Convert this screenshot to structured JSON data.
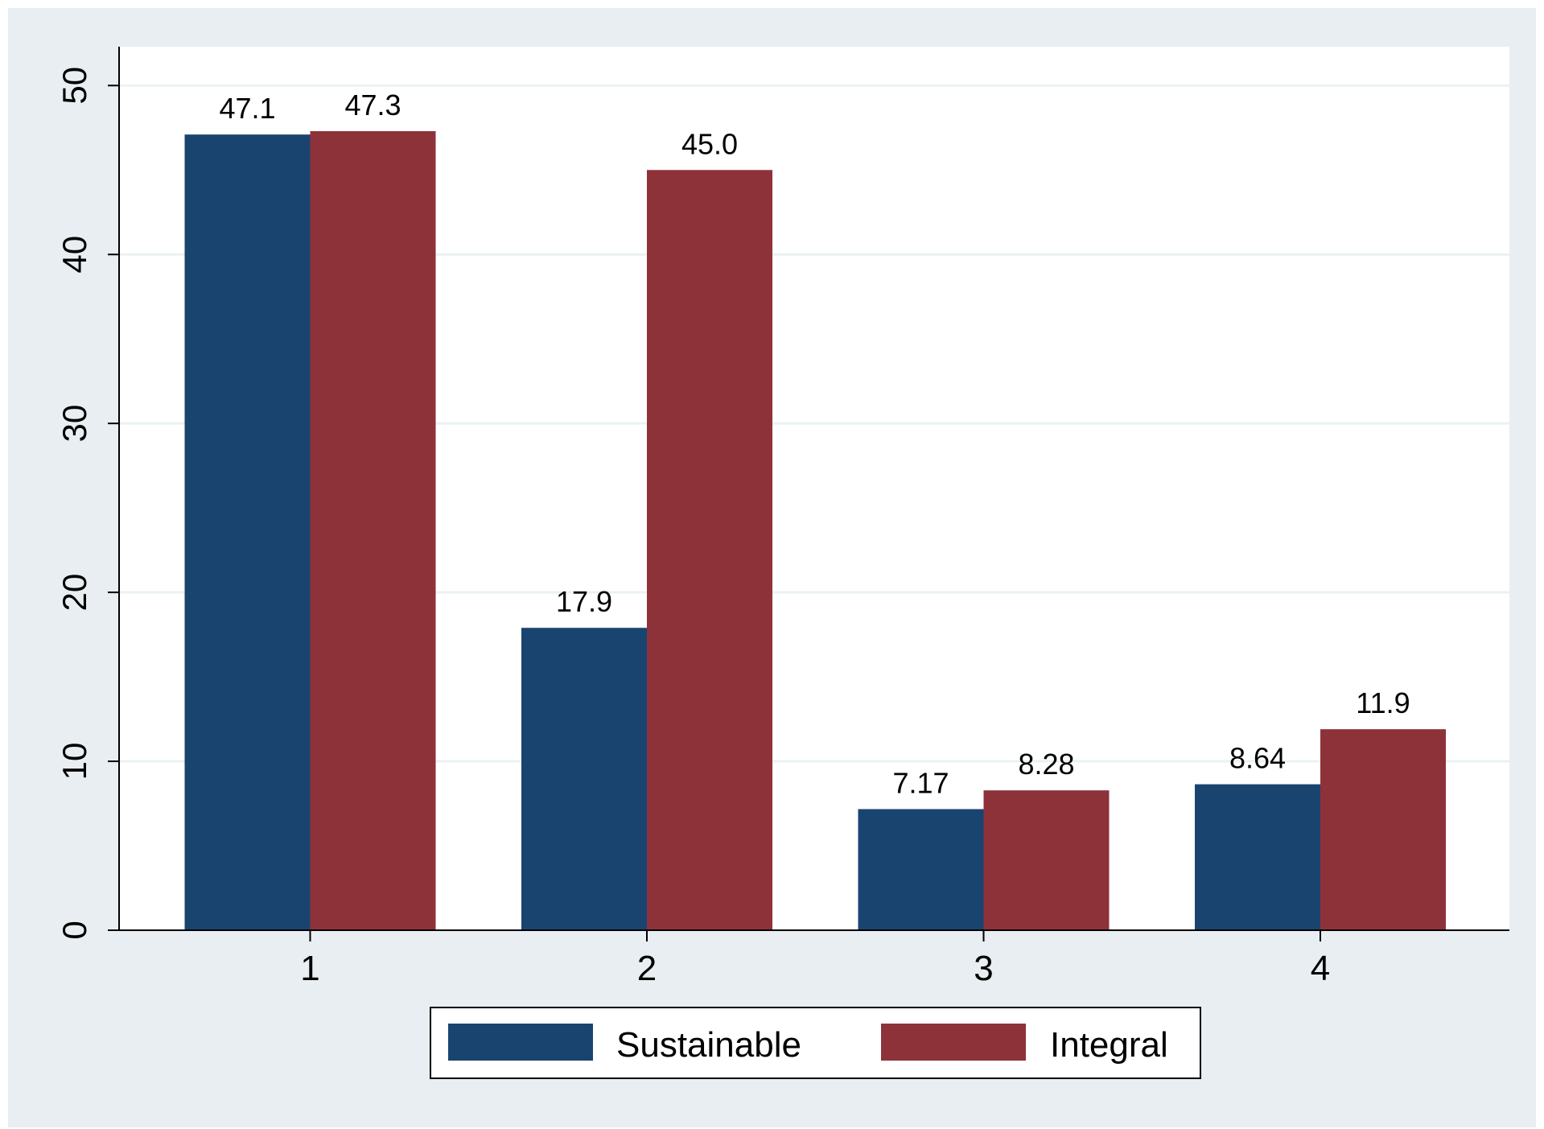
{
  "colors": {
    "outer_background": "#e8eef1",
    "plot_background": "#ffffff",
    "gridline": "#eaf2f3",
    "axis": "#000000",
    "text": "#000000"
  },
  "chart_data": {
    "type": "bar",
    "title": "",
    "xlabel": "",
    "ylabel": "",
    "categories": [
      "1",
      "2",
      "3",
      "4"
    ],
    "series": [
      {
        "name": "Sustainable",
        "color": "#1a4470",
        "values": [
          47.1,
          17.9,
          7.17,
          8.64
        ],
        "labels": [
          "47.1",
          "17.9",
          "7.17",
          "8.64"
        ]
      },
      {
        "name": "Integral",
        "color": "#8e323a",
        "values": [
          47.3,
          45.0,
          8.28,
          11.9
        ],
        "labels": [
          "47.3",
          "45.0",
          "8.28",
          "11.9"
        ]
      }
    ],
    "ylim": [
      0,
      52.3
    ],
    "yticks": [
      0,
      10,
      20,
      30,
      40,
      50
    ],
    "ytick_labels": [
      "0",
      "10",
      "20",
      "30",
      "40",
      "50"
    ],
    "grid": true,
    "legend": {
      "placement": "bottom-center",
      "entries": [
        "Sustainable",
        "Integral"
      ]
    }
  }
}
